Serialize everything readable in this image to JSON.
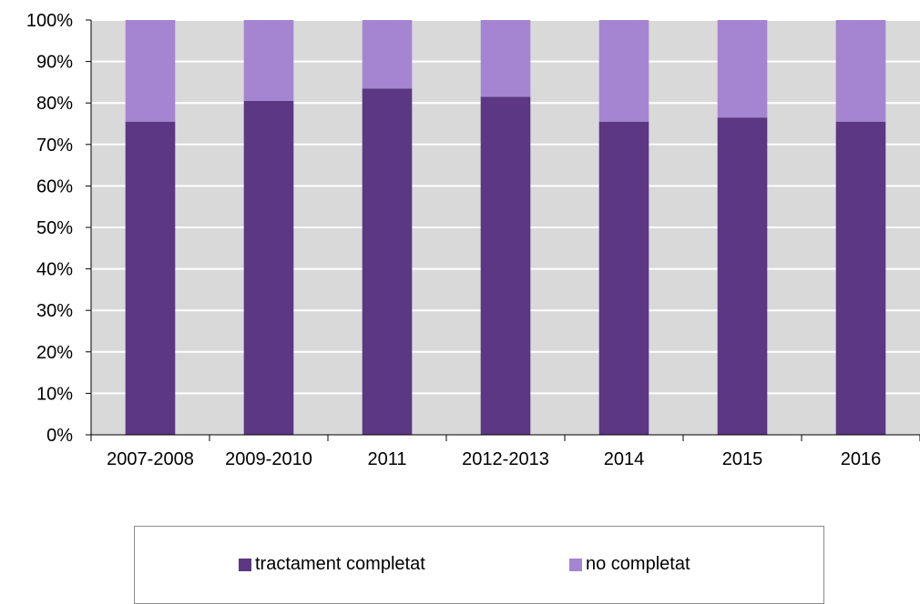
{
  "chart_data": {
    "type": "bar",
    "stacked": true,
    "categories": [
      "2007-2008",
      "2009-2010",
      "2011",
      "2012-2013",
      "2014",
      "2015",
      "2016"
    ],
    "series": [
      {
        "name": "tractament completat",
        "color": "#5b3784",
        "values": [
          75.5,
          80.5,
          83.5,
          81.5,
          75.5,
          76.5,
          75.5
        ]
      },
      {
        "name": "no completat",
        "color": "#a585d1",
        "values": [
          24.5,
          19.5,
          16.5,
          18.5,
          24.5,
          23.5,
          24.5
        ]
      }
    ],
    "yticks": [
      "0%",
      "10%",
      "20%",
      "30%",
      "40%",
      "50%",
      "60%",
      "70%",
      "80%",
      "90%",
      "100%"
    ],
    "ylim": [
      0,
      100
    ],
    "grid": true,
    "plot_background": "#d9d9d9",
    "legend_position": "bottom"
  }
}
